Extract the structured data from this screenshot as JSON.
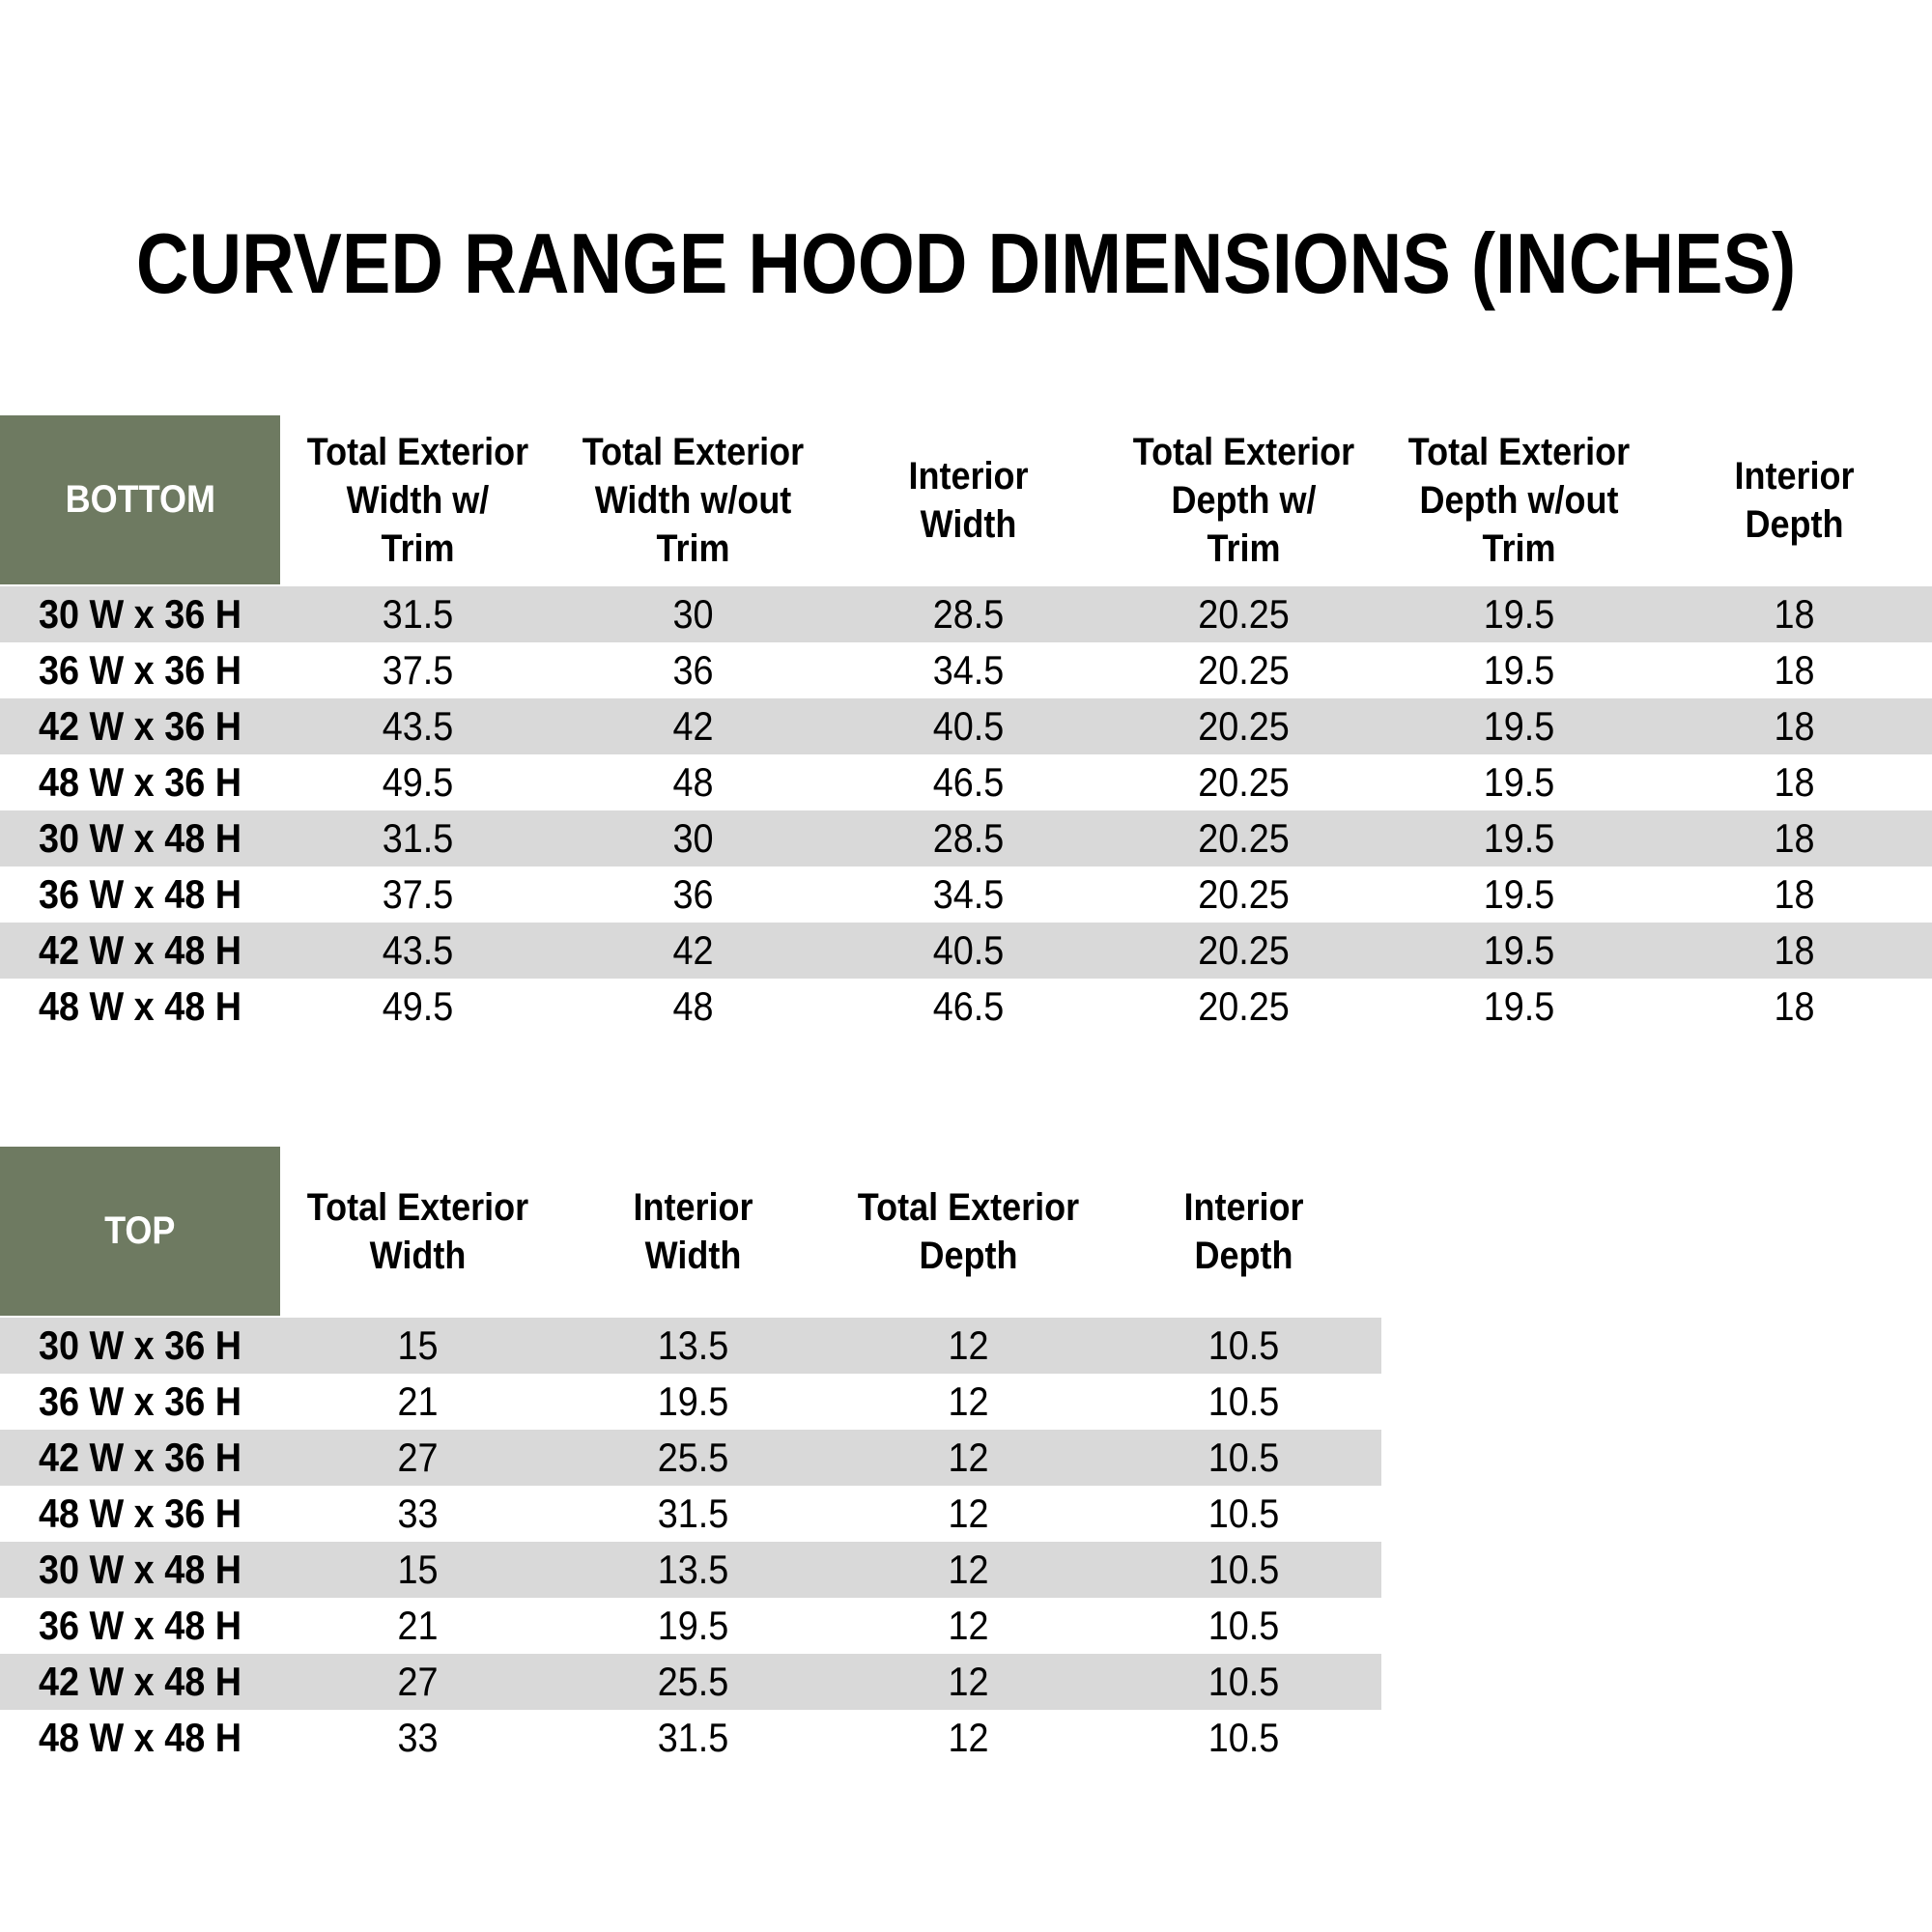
{
  "title": "CURVED RANGE HOOD DIMENSIONS (INCHES)",
  "colors": {
    "header_bg": "#6E7A61",
    "header_text": "#FFFFFF",
    "stripe": "#D9D9D9",
    "text": "#000000",
    "page_bg": "#FFFFFF"
  },
  "bottom_table": {
    "corner": "BOTTOM",
    "headers": [
      [
        "Total Exterior",
        "Width w/",
        "Trim"
      ],
      [
        "Total Exterior",
        "Width w/out",
        "Trim"
      ],
      [
        "Interior",
        "Width"
      ],
      [
        "Total Exterior",
        "Depth w/",
        "Trim"
      ],
      [
        "Total Exterior",
        "Depth w/out",
        "Trim"
      ],
      [
        "Interior",
        "Depth"
      ]
    ],
    "rows": [
      {
        "label": "30 W x 36 H",
        "values": [
          "31.5",
          "30",
          "28.5",
          "20.25",
          "19.5",
          "18"
        ]
      },
      {
        "label": "36 W x 36 H",
        "values": [
          "37.5",
          "36",
          "34.5",
          "20.25",
          "19.5",
          "18"
        ]
      },
      {
        "label": "42 W x 36 H",
        "values": [
          "43.5",
          "42",
          "40.5",
          "20.25",
          "19.5",
          "18"
        ]
      },
      {
        "label": "48 W x 36 H",
        "values": [
          "49.5",
          "48",
          "46.5",
          "20.25",
          "19.5",
          "18"
        ]
      },
      {
        "label": "30 W x 48 H",
        "values": [
          "31.5",
          "30",
          "28.5",
          "20.25",
          "19.5",
          "18"
        ]
      },
      {
        "label": "36 W x 48 H",
        "values": [
          "37.5",
          "36",
          "34.5",
          "20.25",
          "19.5",
          "18"
        ]
      },
      {
        "label": "42 W x 48 H",
        "values": [
          "43.5",
          "42",
          "40.5",
          "20.25",
          "19.5",
          "18"
        ]
      },
      {
        "label": "48 W x 48 H",
        "values": [
          "49.5",
          "48",
          "46.5",
          "20.25",
          "19.5",
          "18"
        ]
      }
    ]
  },
  "top_table": {
    "corner": "TOP",
    "headers": [
      [
        "Total Exterior",
        "Width"
      ],
      [
        "Interior",
        "Width"
      ],
      [
        "Total Exterior",
        "Depth"
      ],
      [
        "Interior",
        "Depth"
      ]
    ],
    "rows": [
      {
        "label": "30 W x 36 H",
        "values": [
          "15",
          "13.5",
          "12",
          "10.5"
        ]
      },
      {
        "label": "36 W x 36 H",
        "values": [
          "21",
          "19.5",
          "12",
          "10.5"
        ]
      },
      {
        "label": "42 W x 36 H",
        "values": [
          "27",
          "25.5",
          "12",
          "10.5"
        ]
      },
      {
        "label": "48 W x 36 H",
        "values": [
          "33",
          "31.5",
          "12",
          "10.5"
        ]
      },
      {
        "label": "30 W x 48 H",
        "values": [
          "15",
          "13.5",
          "12",
          "10.5"
        ]
      },
      {
        "label": "36 W x 48 H",
        "values": [
          "21",
          "19.5",
          "12",
          "10.5"
        ]
      },
      {
        "label": "42 W x 48 H",
        "values": [
          "27",
          "25.5",
          "12",
          "10.5"
        ]
      },
      {
        "label": "48 W x 48 H",
        "values": [
          "33",
          "31.5",
          "12",
          "10.5"
        ]
      }
    ]
  }
}
